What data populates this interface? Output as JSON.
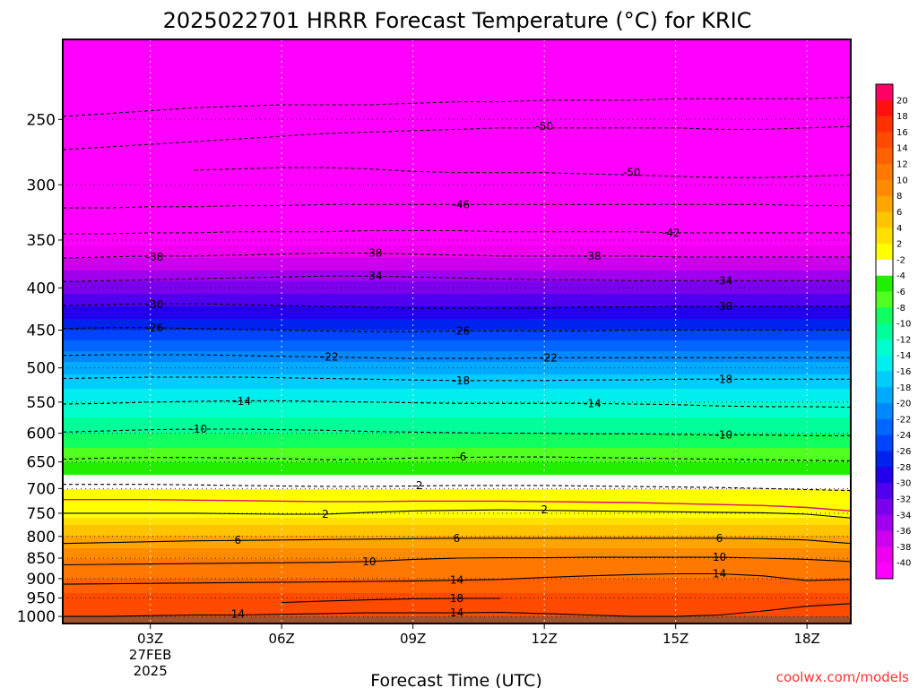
{
  "title": "2025022701 HRRR Forecast Temperature (°C) for KRIC",
  "xlabel": "Forecast Time (UTC)",
  "credit": "coolwx.com/models",
  "chart_data": {
    "type": "heatmap",
    "title": "2025022701 HRRR Forecast Temperature (°C) for KRIC",
    "xlabel": "Forecast Time (UTC)",
    "ylabel": "",
    "units": "°C",
    "y_scale": "log-pressure",
    "xlim_hours_utc": [
      1,
      19
    ],
    "ylim_hpa": [
      1020,
      200
    ],
    "grid": true,
    "x_ticks": [
      {
        "hour": 3,
        "label": "03Z",
        "sublabels": [
          "27FEB",
          "2025"
        ]
      },
      {
        "hour": 6,
        "label": "06Z"
      },
      {
        "hour": 9,
        "label": "09Z"
      },
      {
        "hour": 12,
        "label": "12Z"
      },
      {
        "hour": 15,
        "label": "15Z"
      },
      {
        "hour": 18,
        "label": "18Z"
      }
    ],
    "y_ticks": [
      250,
      300,
      350,
      400,
      450,
      500,
      550,
      600,
      650,
      700,
      750,
      800,
      850,
      900,
      950,
      1000
    ],
    "colorbar": {
      "labels": [
        "20",
        "18",
        "16",
        "14",
        "12",
        "10",
        "8",
        "6",
        "4",
        "2",
        "-2",
        "-4",
        "-6",
        "-8",
        "-10",
        "-12",
        "-14",
        "-16",
        "-18",
        "-20",
        "-22",
        "-24",
        "-26",
        "-28",
        "-30",
        "-32",
        "-34",
        "-36",
        "-38",
        "-40"
      ],
      "colors": [
        "#ff0066",
        "#ff1010",
        "#ff3000",
        "#ff4a00",
        "#ff6000",
        "#ff7800",
        "#ff8c00",
        "#ffa500",
        "#ffc400",
        "#ffe000",
        "#ffff00",
        "#ffffff",
        "#22ee00",
        "#50ff20",
        "#10ff60",
        "#00ff99",
        "#00ffcc",
        "#00eeee",
        "#00ccff",
        "#00aaff",
        "#0088ff",
        "#0066ff",
        "#0044ff",
        "#0022ee",
        "#2200ee",
        "#5000ee",
        "#7a00ee",
        "#a000ee",
        "#cc00ee",
        "#ee00ee",
        "#ff00ff"
      ]
    },
    "temperature_profile": [
      {
        "p": 1000,
        "t": 15
      },
      {
        "p": 975,
        "t": 15
      },
      {
        "p": 950,
        "t": 15
      },
      {
        "p": 925,
        "t": 13
      },
      {
        "p": 900,
        "t": 12
      },
      {
        "p": 875,
        "t": 11
      },
      {
        "p": 850,
        "t": 10
      },
      {
        "p": 825,
        "t": 8
      },
      {
        "p": 800,
        "t": 6
      },
      {
        "p": 775,
        "t": 4
      },
      {
        "p": 760,
        "t": 2
      },
      {
        "p": 740,
        "t": 0
      },
      {
        "p": 720,
        "t": -1
      },
      {
        "p": 700,
        "t": -2
      },
      {
        "p": 650,
        "t": -6
      },
      {
        "p": 600,
        "t": -10
      },
      {
        "p": 550,
        "t": -14
      },
      {
        "p": 500,
        "t": -19
      },
      {
        "p": 450,
        "t": -26
      },
      {
        "p": 400,
        "t": -33
      },
      {
        "p": 350,
        "t": -41
      },
      {
        "p": 300,
        "t": -50
      },
      {
        "p": 250,
        "t": -55
      },
      {
        "p": 200,
        "t": -60
      }
    ],
    "contours": [
      {
        "value": -54,
        "p": [
          248,
          246,
          244,
          242,
          241,
          240,
          240,
          240,
          239,
          238,
          238,
          237,
          237,
          237,
          236,
          236,
          236,
          236,
          235
        ]
      },
      {
        "value": -50,
        "p": [
          272,
          270,
          268,
          266,
          264,
          262,
          260,
          259,
          258,
          257,
          256,
          256,
          256,
          256,
          256,
          257,
          257,
          256,
          255
        ]
      },
      {
        "value": -50,
        "p": [
          null,
          null,
          null,
          288,
          287,
          286,
          286,
          287,
          289,
          290,
          290,
          290,
          291,
          292,
          293,
          294,
          294,
          293,
          292
        ]
      },
      {
        "value": -46,
        "p": [
          320,
          320,
          319,
          319,
          318,
          318,
          317,
          317,
          317,
          317,
          317,
          317,
          317,
          317,
          317,
          317,
          317,
          318,
          318
        ]
      },
      {
        "value": -42,
        "p": [
          344,
          344,
          343,
          343,
          342,
          342,
          342,
          341,
          341,
          341,
          342,
          342,
          342,
          342,
          343,
          343,
          343,
          343,
          343
        ]
      },
      {
        "value": -38,
        "p": [
          368,
          367,
          366,
          366,
          365,
          364,
          363,
          363,
          364,
          365,
          366,
          366,
          366,
          366,
          367,
          367,
          367,
          367,
          367
        ]
      },
      {
        "value": -34,
        "p": [
          393,
          392,
          391,
          390,
          389,
          388,
          387,
          387,
          388,
          389,
          390,
          391,
          391,
          392,
          392,
          392,
          392,
          392,
          392
        ]
      },
      {
        "value": -30,
        "p": [
          420,
          419,
          418,
          418,
          419,
          420,
          421,
          422,
          423,
          423,
          423,
          423,
          422,
          422,
          421,
          421,
          421,
          421,
          421
        ]
      },
      {
        "value": -26,
        "p": [
          448,
          447,
          447,
          448,
          449,
          450,
          451,
          452,
          452,
          451,
          451,
          451,
          451,
          450,
          450,
          450,
          450,
          450,
          450
        ]
      },
      {
        "value": -22,
        "p": [
          483,
          482,
          482,
          482,
          483,
          484,
          485,
          486,
          487,
          487,
          487,
          486,
          486,
          486,
          486,
          486,
          486,
          486,
          486
        ]
      },
      {
        "value": -18,
        "p": [
          515,
          514,
          513,
          513,
          513,
          514,
          515,
          516,
          517,
          518,
          518,
          518,
          517,
          517,
          516,
          516,
          516,
          516,
          516
        ]
      },
      {
        "value": -14,
        "p": [
          553,
          552,
          550,
          549,
          548,
          548,
          549,
          550,
          551,
          552,
          552,
          552,
          552,
          553,
          554,
          556,
          557,
          557,
          558
        ]
      },
      {
        "value": -10,
        "p": [
          598,
          596,
          594,
          593,
          593,
          594,
          595,
          597,
          598,
          599,
          600,
          600,
          601,
          601,
          602,
          603,
          603,
          604,
          604
        ]
      },
      {
        "value": -6,
        "p": [
          645,
          643,
          642,
          642,
          643,
          644,
          646,
          645,
          643,
          642,
          641,
          641,
          642,
          643,
          644,
          645,
          646,
          647,
          648
        ]
      },
      {
        "value": -2,
        "p": [
          692,
          692,
          692,
          693,
          694,
          695,
          696,
          696,
          695,
          694,
          694,
          694,
          695,
          696,
          697,
          698,
          700,
          702,
          704
        ]
      },
      {
        "value": 0,
        "p": [
          722,
          722,
          722,
          723,
          724,
          725,
          726,
          726,
          725,
          725,
          725,
          726,
          727,
          728,
          730,
          732,
          734,
          738,
          745
        ]
      },
      {
        "value": 2,
        "p": [
          750,
          750,
          750,
          750,
          751,
          752,
          752,
          748,
          745,
          744,
          743,
          744,
          745,
          746,
          747,
          748,
          749,
          752,
          760
        ]
      },
      {
        "value": 6,
        "p": [
          816,
          814,
          812,
          810,
          809,
          808,
          807,
          806,
          805,
          804,
          804,
          804,
          804,
          804,
          804,
          804,
          805,
          808,
          816
        ]
      },
      {
        "value": 10,
        "p": [
          866,
          865,
          864,
          863,
          862,
          861,
          860,
          858,
          853,
          850,
          849,
          849,
          848,
          848,
          848,
          848,
          850,
          853,
          858
        ]
      },
      {
        "value": 14,
        "p": [
          914,
          913,
          912,
          911,
          910,
          909,
          908,
          907,
          906,
          904,
          902,
          897,
          893,
          890,
          888,
          888,
          893,
          905,
          902
        ]
      },
      {
        "value": 18,
        "p": [
          null,
          null,
          null,
          null,
          null,
          962,
          958,
          955,
          952,
          951,
          951,
          null,
          null,
          null,
          null,
          null,
          null,
          null,
          null
        ]
      },
      {
        "value": 14,
        "p": [
          1000,
          1000,
          998,
          996,
          996,
          994,
          992,
          990,
          990,
          990,
          989,
          992,
          996,
          1000,
          1000,
          996,
          985,
          972,
          965
        ]
      }
    ],
    "contour_labels": [
      {
        "hour": 12.0,
        "p": 255,
        "text": "-50"
      },
      {
        "hour": 14.0,
        "p": 290,
        "text": "-50"
      },
      {
        "hour": 10.1,
        "p": 317,
        "text": "-46"
      },
      {
        "hour": 14.9,
        "p": 343,
        "text": "-42"
      },
      {
        "hour": 3.1,
        "p": 367,
        "text": "-38"
      },
      {
        "hour": 8.1,
        "p": 363,
        "text": "-38"
      },
      {
        "hour": 13.1,
        "p": 366,
        "text": "-38"
      },
      {
        "hour": 8.1,
        "p": 387,
        "text": "-34"
      },
      {
        "hour": 16.1,
        "p": 392,
        "text": "-34"
      },
      {
        "hour": 3.1,
        "p": 419,
        "text": "-30"
      },
      {
        "hour": 16.1,
        "p": 421,
        "text": "-30"
      },
      {
        "hour": 3.1,
        "p": 447,
        "text": "-26"
      },
      {
        "hour": 10.1,
        "p": 451,
        "text": "-26"
      },
      {
        "hour": 7.1,
        "p": 485,
        "text": "-22"
      },
      {
        "hour": 12.1,
        "p": 486,
        "text": "-22"
      },
      {
        "hour": 10.1,
        "p": 518,
        "text": "-18"
      },
      {
        "hour": 16.1,
        "p": 516,
        "text": "-18"
      },
      {
        "hour": 5.1,
        "p": 549,
        "text": "-14"
      },
      {
        "hour": 13.1,
        "p": 552,
        "text": "-14"
      },
      {
        "hour": 4.1,
        "p": 593,
        "text": "-10"
      },
      {
        "hour": 16.1,
        "p": 603,
        "text": "-10"
      },
      {
        "hour": 10.1,
        "p": 641,
        "text": "-6"
      },
      {
        "hour": 9.1,
        "p": 694,
        "text": "-2"
      },
      {
        "hour": 7.0,
        "p": 752,
        "text": "2"
      },
      {
        "hour": 12.0,
        "p": 743,
        "text": "2"
      },
      {
        "hour": 5.0,
        "p": 808,
        "text": "6"
      },
      {
        "hour": 10.0,
        "p": 804,
        "text": "6"
      },
      {
        "hour": 16.0,
        "p": 804,
        "text": "6"
      },
      {
        "hour": 8.0,
        "p": 858,
        "text": "10"
      },
      {
        "hour": 16.0,
        "p": 848,
        "text": "10"
      },
      {
        "hour": 10.0,
        "p": 904,
        "text": "14"
      },
      {
        "hour": 16.0,
        "p": 888,
        "text": "14"
      },
      {
        "hour": 10.0,
        "p": 951,
        "text": "18"
      },
      {
        "hour": 5.0,
        "p": 994,
        "text": "14"
      },
      {
        "hour": 10.0,
        "p": 990,
        "text": "14"
      }
    ]
  }
}
